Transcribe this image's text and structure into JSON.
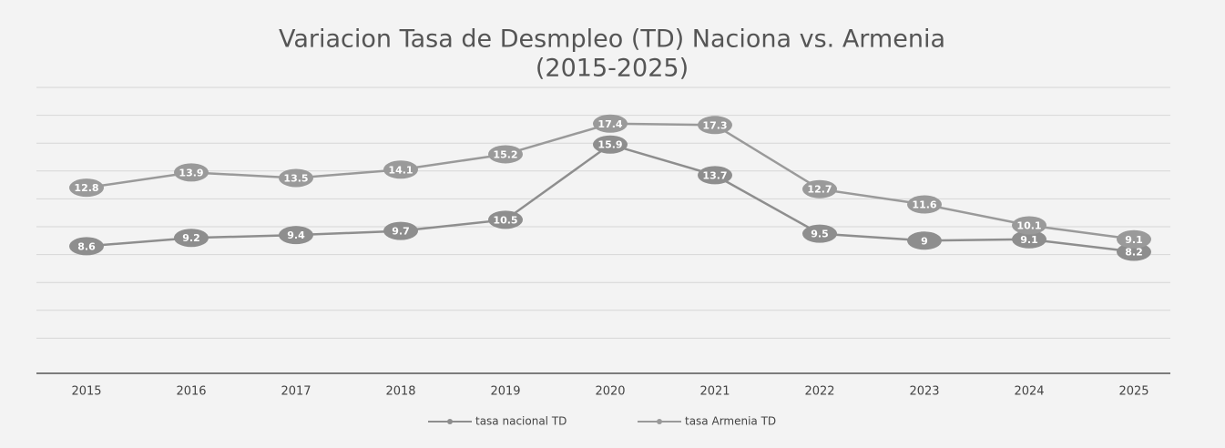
{
  "chart_data": {
    "type": "line",
    "title": "Variacion  Tasa de Desmpleo (TD) Naciona vs. Armenia",
    "subtitle": "(2015-2025)",
    "categories": [
      "2015",
      "2016",
      "2017",
      "2018",
      "2019",
      "2020",
      "2021",
      "2022",
      "2023",
      "2024",
      "2025"
    ],
    "series": [
      {
        "name": "tasa nacional TD",
        "color": "#8e8e8e",
        "values": [
          8.6,
          9.2,
          9.4,
          9.7,
          10.5,
          15.9,
          13.7,
          9.5,
          9,
          9.1,
          8.2
        ]
      },
      {
        "name": "tasa Armenia TD",
        "color": "#9a9a9a",
        "values": [
          12.8,
          13.9,
          13.5,
          14.1,
          15.2,
          17.4,
          17.3,
          12.7,
          11.6,
          10.1,
          9.1
        ]
      }
    ],
    "ylim": [
      0,
      20
    ],
    "yticks": [
      0,
      2,
      4,
      6,
      8,
      10,
      12,
      14,
      16,
      18,
      20
    ],
    "grid": true
  }
}
